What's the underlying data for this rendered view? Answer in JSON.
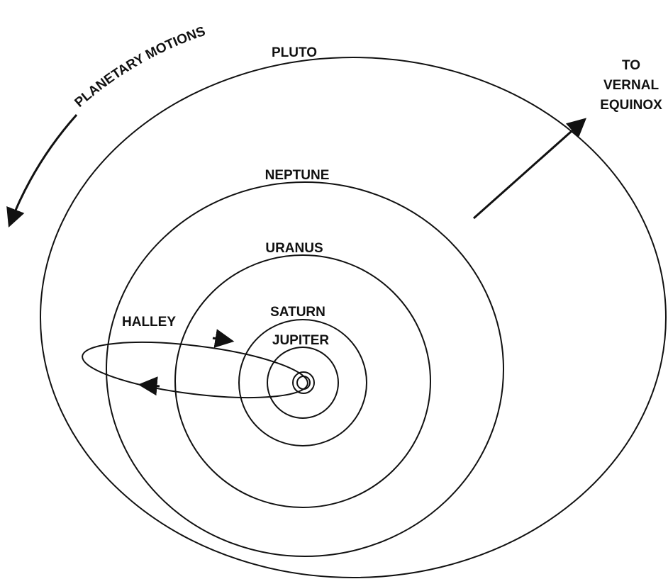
{
  "title": "PLANETARY MOTIONS",
  "orbits": [
    {
      "label": "PLUTO"
    },
    {
      "label": "NEPTUNE"
    },
    {
      "label": "URANUS"
    },
    {
      "label": "SATURN"
    },
    {
      "label": "JUPITER"
    }
  ],
  "comet": {
    "label": "HALLEY"
  },
  "direction": [
    "TO",
    "VERNAL",
    "EQUINOX"
  ]
}
